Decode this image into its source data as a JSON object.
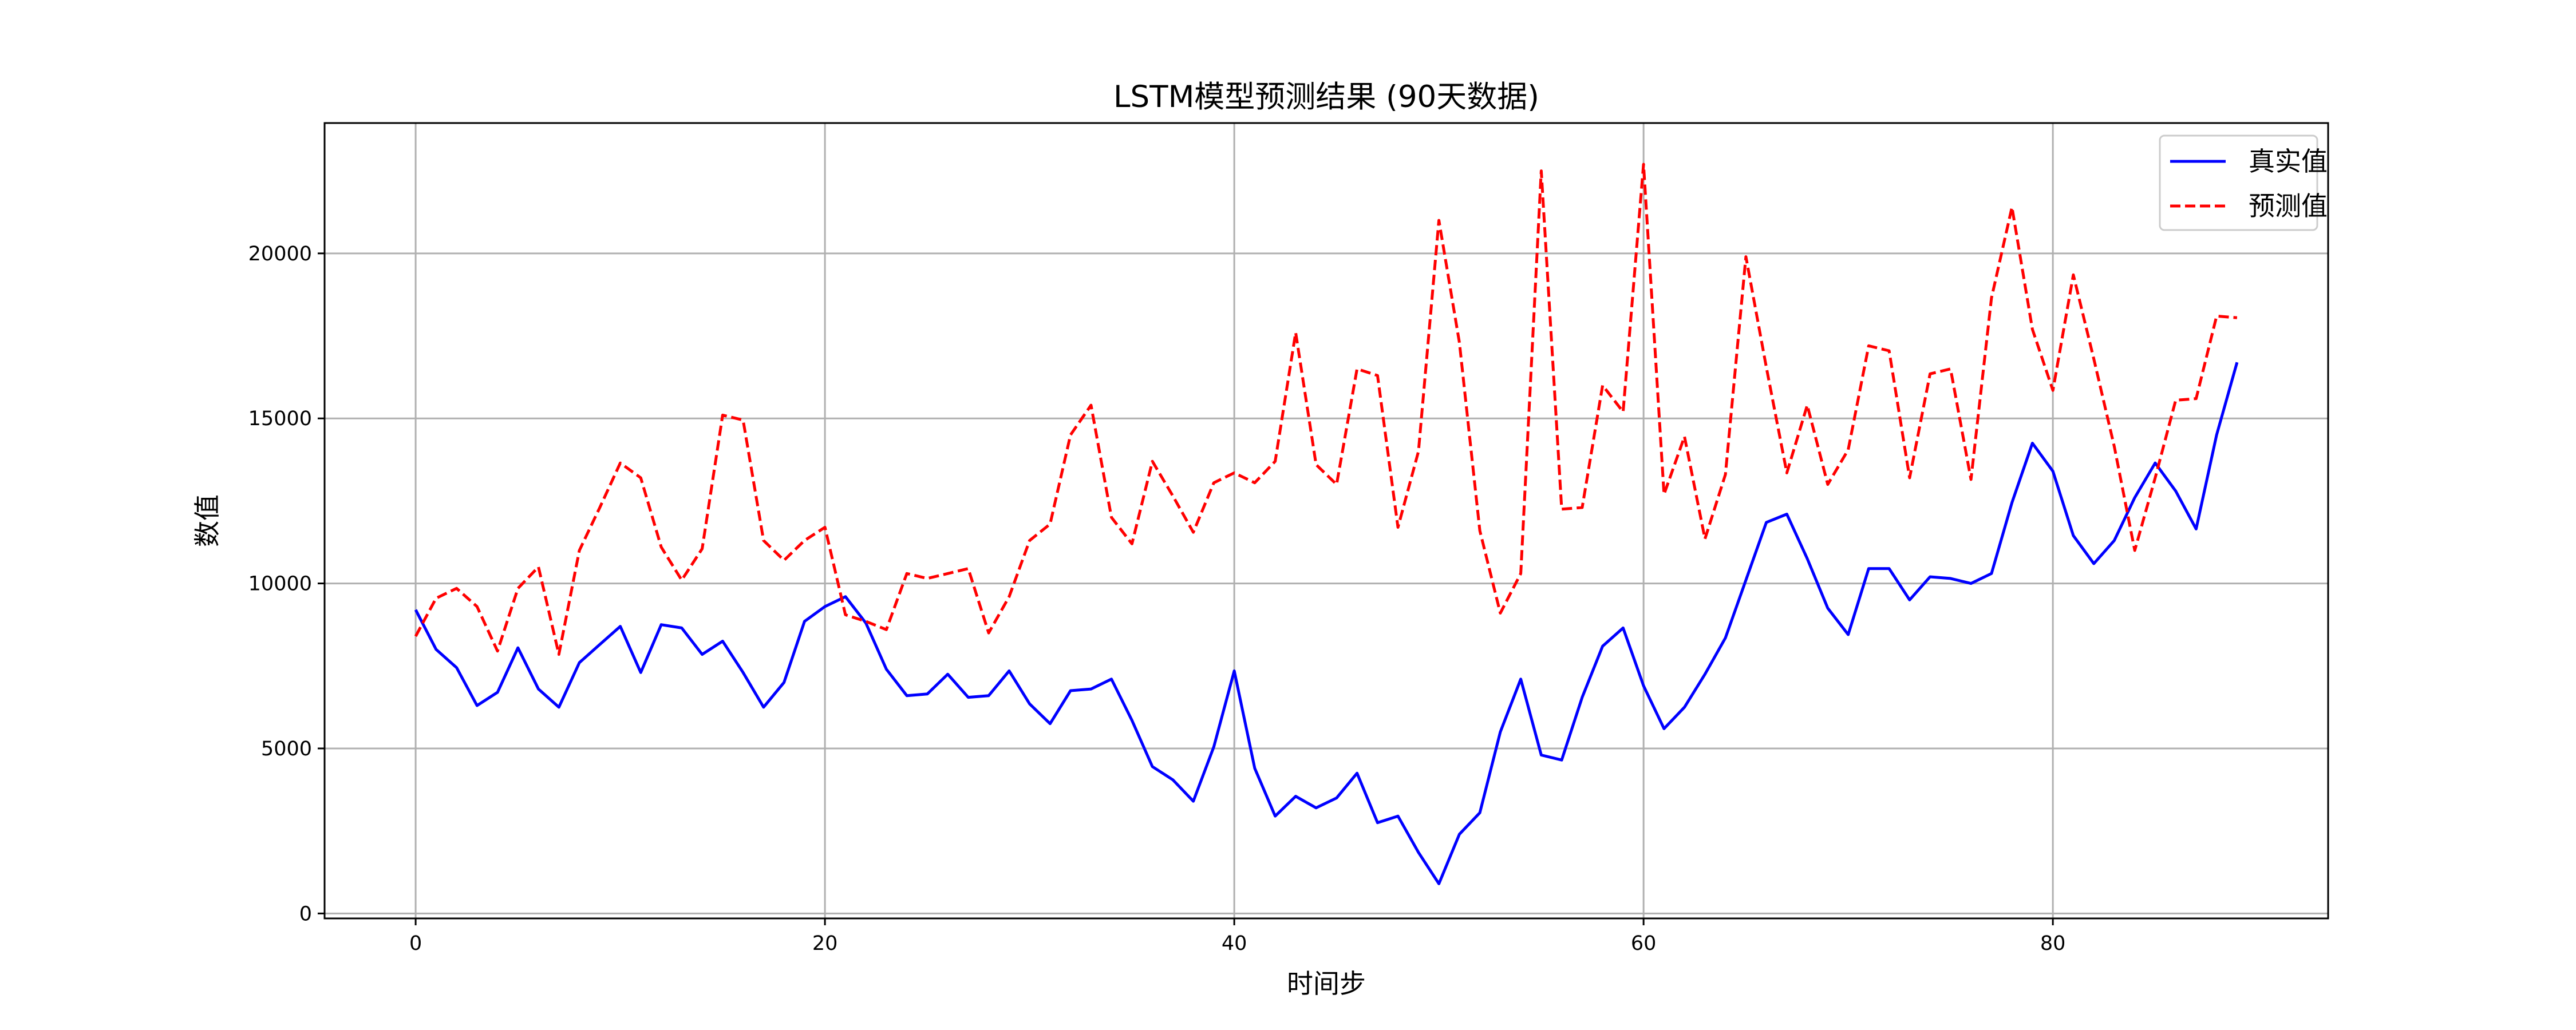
{
  "chart_data": {
    "type": "line",
    "title": "LSTM模型预测结果 (90天数据)",
    "xlabel": "时间步",
    "ylabel": "数值",
    "xlim": [
      -4.45,
      93.45
    ],
    "ylim": [
      -150,
      23950
    ],
    "xticks": [
      0,
      20,
      40,
      60,
      80
    ],
    "yticks": [
      0,
      5000,
      10000,
      15000,
      20000
    ],
    "grid": true,
    "legend_position": "top-right",
    "series": [
      {
        "name": "真实值",
        "color": "#0000ff",
        "dash": "solid",
        "values": [
          9200,
          8000,
          7450,
          6300,
          6700,
          8050,
          6800,
          6250,
          7600,
          8150,
          8700,
          7300,
          8750,
          8650,
          7850,
          8250,
          7300,
          6250,
          7000,
          8850,
          9300,
          9600,
          8800,
          7400,
          6600,
          6650,
          7250,
          6550,
          6600,
          7350,
          6350,
          5750,
          6750,
          6800,
          7100,
          5850,
          4450,
          4050,
          3400,
          5050,
          7350,
          4400,
          2950,
          3550,
          3200,
          3500,
          4250,
          2750,
          2950,
          1850,
          900,
          2400,
          3050,
          5500,
          7100,
          4800,
          4650,
          6550,
          8100,
          8650,
          6900,
          5600,
          6250,
          7250,
          8350,
          10100,
          11850,
          12100,
          10750,
          9250,
          8450,
          10450,
          10450,
          9500,
          10200,
          10150,
          10000,
          10300,
          12450,
          14250,
          13400,
          11450,
          10600,
          11300,
          12600,
          13650,
          12800,
          11650,
          14500,
          16700
        ]
      },
      {
        "name": "预测值",
        "color": "#ff0000",
        "dash": "dashed",
        "values": [
          8400,
          9550,
          9850,
          9300,
          7950,
          9850,
          10500,
          7850,
          11000,
          12300,
          13650,
          13200,
          11100,
          10100,
          11050,
          15100,
          14950,
          11300,
          10700,
          11300,
          11700,
          9050,
          8850,
          8600,
          10300,
          10150,
          10300,
          10450,
          8500,
          9600,
          11300,
          11800,
          14500,
          15400,
          12000,
          11200,
          13700,
          12650,
          11550,
          13050,
          13350,
          13050,
          13700,
          17600,
          13600,
          13000,
          16500,
          16300,
          11700,
          14000,
          21000,
          17300,
          11600,
          9100,
          10300,
          22500,
          12250,
          12300,
          16000,
          15200,
          22700,
          12700,
          14450,
          11350,
          13300,
          19900,
          16550,
          13350,
          15400,
          13000,
          14050,
          17200,
          17050,
          13200,
          16350,
          16500,
          13150,
          18650,
          21400,
          17700,
          15850,
          19350,
          16800,
          14150,
          11000,
          13200,
          15550,
          15600,
          18100,
          18050
        ]
      }
    ]
  }
}
